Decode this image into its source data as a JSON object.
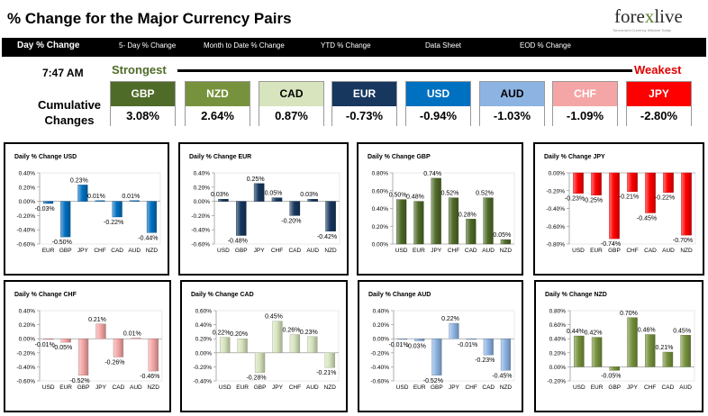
{
  "header": {
    "title": "% Change for the Major Currency Pairs",
    "logo_main": "fore",
    "logo_x": "x",
    "logo_end": "live",
    "logo_tagline": "Tomorrow's Currency Wisdom Today"
  },
  "nav": [
    {
      "label": "Day % Change",
      "active": true
    },
    {
      "label": "5- Day % Change"
    },
    {
      "label": "Month to Date % Change"
    },
    {
      "label": "YTD % Change"
    },
    {
      "label": "Data Sheet"
    },
    {
      "label": "EOD % Change"
    }
  ],
  "summary": {
    "time": "7:47 AM",
    "strongest": "Strongest",
    "weakest": "Weakest",
    "cumulative_label": "Cumulative Changes",
    "currencies": [
      {
        "code": "GBP",
        "value": "3.08%",
        "bg": "#4f6b28",
        "fg": "#ffffff"
      },
      {
        "code": "NZD",
        "value": "2.64%",
        "bg": "#76923c",
        "fg": "#ffffff"
      },
      {
        "code": "CAD",
        "value": "0.87%",
        "bg": "#d7e4bd",
        "fg": "#000000"
      },
      {
        "code": "EUR",
        "value": "-0.73%",
        "bg": "#17375e",
        "fg": "#ffffff"
      },
      {
        "code": "USD",
        "value": "-0.94%",
        "bg": "#0070c0",
        "fg": "#ffffff"
      },
      {
        "code": "AUD",
        "value": "-1.03%",
        "bg": "#8db3e2",
        "fg": "#000000"
      },
      {
        "code": "CHF",
        "value": "-1.09%",
        "bg": "#f4a6a6",
        "fg": "#ffffff"
      },
      {
        "code": "JPY",
        "value": "-2.80%",
        "bg": "#ff0000",
        "fg": "#ffffff"
      }
    ]
  },
  "chart_data": [
    {
      "type": "bar",
      "title": "Daily % Change USD",
      "categories": [
        "EUR",
        "GBP",
        "JPY",
        "CHF",
        "CAD",
        "AUD",
        "NZD"
      ],
      "values": [
        -0.03,
        -0.5,
        0.23,
        0.01,
        -0.22,
        0.01,
        -0.44
      ],
      "labels": [
        "-0.03%",
        "-0.50%",
        "0.23%",
        "0.01%",
        "-0.22%",
        "0.01%",
        "-0.44%"
      ],
      "ylim": [
        -0.6,
        0.4
      ],
      "ticks": [
        "0.40%",
        "0.20%",
        "0.00%",
        "-0.20%",
        "-0.40%",
        "-0.60%"
      ],
      "color": "#0070c0"
    },
    {
      "type": "bar",
      "title": "Daily % Change EUR",
      "categories": [
        "USD",
        "GBP",
        "JPY",
        "CHF",
        "CAD",
        "AUD",
        "NZD"
      ],
      "values": [
        0.03,
        -0.48,
        0.25,
        0.05,
        -0.2,
        0.03,
        -0.42
      ],
      "labels": [
        "0.03%",
        "-0.48%",
        "0.25%",
        "0.05%",
        "-0.20%",
        "0.03%",
        "-0.42%"
      ],
      "ylim": [
        -0.6,
        0.4
      ],
      "ticks": [
        "0.40%",
        "0.20%",
        "0.00%",
        "-0.20%",
        "-0.40%",
        "-0.60%"
      ],
      "color": "#17375e"
    },
    {
      "type": "bar",
      "title": "Daily % Change GBP",
      "categories": [
        "USD",
        "EUR",
        "JPY",
        "CHF",
        "CAD",
        "AUD",
        "NZD"
      ],
      "values": [
        0.5,
        0.48,
        0.74,
        0.52,
        0.28,
        0.52,
        0.05
      ],
      "labels": [
        "0.50%",
        "0.48%",
        "0.74%",
        "0.52%",
        "0.28%",
        "0.52%",
        "0.05%"
      ],
      "ylim": [
        0,
        0.8
      ],
      "ticks": [
        "0.80%",
        "0.60%",
        "0.40%",
        "0.20%",
        "0.00%"
      ],
      "color": "#4f6b28"
    },
    {
      "type": "bar",
      "title": "Daily % Change JPY",
      "categories": [
        "USD",
        "EUR",
        "GBP",
        "CHF",
        "CAD",
        "AUD",
        "NZD"
      ],
      "values": [
        -0.23,
        -0.25,
        -0.74,
        -0.21,
        -0.45,
        -0.22,
        -0.7
      ],
      "labels": [
        "-0.23%",
        "-0.25%",
        "-0.74%",
        "-0.21%",
        "-0.45%",
        "-0.22%",
        "-0.70%"
      ],
      "ylim": [
        -0.8,
        0
      ],
      "ticks": [
        "0.00%",
        "-0.20%",
        "-0.40%",
        "-0.60%",
        "-0.80%"
      ],
      "color": "#ff0000"
    },
    {
      "type": "bar",
      "title": "Daily % Change CHF",
      "categories": [
        "USD",
        "EUR",
        "GBP",
        "JPY",
        "CAD",
        "AUD",
        "NZD"
      ],
      "values": [
        -0.01,
        -0.05,
        -0.52,
        0.21,
        -0.26,
        0.01,
        -0.46
      ],
      "labels": [
        "-0.01%",
        "-0.05%",
        "-0.52%",
        "0.21%",
        "-0.26%",
        "0.01%",
        "-0.46%"
      ],
      "ylim": [
        -0.6,
        0.4
      ],
      "ticks": [
        "0.40%",
        "0.20%",
        "0.00%",
        "-0.20%",
        "-0.40%",
        "-0.60%"
      ],
      "color": "#f4a6a6"
    },
    {
      "type": "bar",
      "title": "Daily % Change CAD",
      "categories": [
        "USD",
        "EUR",
        "GBP",
        "JPY",
        "CHF",
        "AUD",
        "NZD"
      ],
      "values": [
        0.22,
        0.2,
        -0.28,
        0.45,
        0.26,
        0.23,
        -0.21
      ],
      "labels": [
        "0.22%",
        "0.20%",
        "-0.28%",
        "0.45%",
        "0.26%",
        "0.23%",
        "-0.21%"
      ],
      "ylim": [
        -0.4,
        0.6
      ],
      "ticks": [
        "0.60%",
        "0.40%",
        "0.20%",
        "0.00%",
        "-0.20%",
        "-0.40%"
      ],
      "color": "#d7e4bd"
    },
    {
      "type": "bar",
      "title": "Daily % Change AUD",
      "categories": [
        "USD",
        "EUR",
        "GBP",
        "JPY",
        "CHF",
        "CAD",
        "NZD"
      ],
      "values": [
        -0.01,
        -0.03,
        -0.52,
        0.22,
        -0.01,
        -0.23,
        -0.45
      ],
      "labels": [
        "-0.01%",
        "-0.03%",
        "-0.52%",
        "0.22%",
        "-0.01%",
        "-0.23%",
        "-0.45%"
      ],
      "ylim": [
        -0.6,
        0.4
      ],
      "ticks": [
        "0.40%",
        "0.20%",
        "0.00%",
        "-0.20%",
        "-0.40%",
        "-0.60%"
      ],
      "color": "#8db3e2"
    },
    {
      "type": "bar",
      "title": "Daily % Change NZD",
      "categories": [
        "USD",
        "EUR",
        "GBP",
        "JPY",
        "CHF",
        "CAD",
        "AUD"
      ],
      "values": [
        0.44,
        0.42,
        -0.05,
        0.7,
        0.46,
        0.21,
        0.45
      ],
      "labels": [
        "0.44%",
        "0.42%",
        "-0.05%",
        "0.70%",
        "0.46%",
        "0.21%",
        "0.45%"
      ],
      "ylim": [
        -0.2,
        0.8
      ],
      "ticks": [
        "0.80%",
        "0.60%",
        "0.40%",
        "0.20%",
        "0.00%",
        "-0.20%"
      ],
      "color": "#76923c"
    }
  ]
}
